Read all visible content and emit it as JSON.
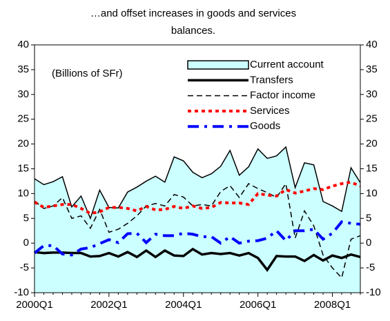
{
  "chart_data": {
    "type": "line",
    "title": [
      "…and offset increases in goods and services",
      "balances."
    ],
    "annotation": "(Billions of SFr)",
    "categories": [
      "2000Q1",
      null,
      null,
      null,
      null,
      null,
      null,
      null,
      "2002Q1",
      null,
      null,
      null,
      null,
      null,
      null,
      null,
      "2004Q1",
      null,
      null,
      null,
      null,
      null,
      null,
      null,
      "2006Q1",
      null,
      null,
      null,
      null,
      null,
      null,
      null,
      "2008Q1",
      null,
      null,
      null
    ],
    "series": [
      {
        "name": "Current account",
        "kind": "area",
        "color": "#ccffff",
        "values": [
          13,
          11.8,
          12.4,
          13.4,
          7.3,
          9.5,
          5,
          10.7,
          7.2,
          7.1,
          10.3,
          11.3,
          12.5,
          13.5,
          12.3,
          17.4,
          16.6,
          14.3,
          13.2,
          14,
          15.5,
          18.7,
          13.7,
          15.4,
          19,
          17.1,
          17.6,
          19.4,
          11.2,
          16.2,
          15.8,
          8.4,
          7.5,
          6.4,
          15.2,
          12.2
        ]
      },
      {
        "name": "Transfers",
        "kind": "line",
        "color": "#000000",
        "width": 3.5,
        "dash": "none",
        "values": [
          -1.8,
          -2,
          -1.9,
          -1.9,
          -2,
          -2,
          -2.7,
          -2.6,
          -2,
          -2.7,
          -1.8,
          -2.8,
          -1.5,
          -2.8,
          -1.5,
          -2.5,
          -2.6,
          -1.2,
          -2.3,
          -2,
          -2.2,
          -2,
          -2.5,
          -2,
          -3,
          -5.4,
          -2.6,
          -2.7,
          -2.7,
          -3.6,
          -2.4,
          -3.5,
          -2.5,
          -3,
          -2.3,
          -2.8
        ]
      },
      {
        "name": "Factor income",
        "kind": "line",
        "color": "#000000",
        "width": 1.5,
        "dash": "8,5",
        "values": [
          8.5,
          7,
          7.5,
          9.2,
          5,
          5.5,
          3,
          6.8,
          2.2,
          2.8,
          4,
          5.5,
          7.5,
          8,
          7.5,
          9.8,
          9.3,
          7.5,
          7.8,
          7.5,
          10.4,
          11.6,
          9.2,
          12,
          11,
          10.2,
          9.2,
          12,
          1,
          6.5,
          3.5,
          -2.4,
          -5,
          -7,
          0.8,
          1.5
        ]
      },
      {
        "name": "Services",
        "kind": "line",
        "color": "#ff0000",
        "width": 4,
        "dash": "5,5",
        "values": [
          8.3,
          7.2,
          7.5,
          7.8,
          7.8,
          7,
          6,
          6.3,
          7.2,
          7.2,
          7,
          6.5,
          7.4,
          6.7,
          6.8,
          7.4,
          7,
          7.5,
          7,
          7.2,
          8.2,
          8.1,
          8.1,
          7.8,
          10,
          9.7,
          9.5,
          10.8,
          10.1,
          10.5,
          11,
          10.8,
          11.5,
          12,
          12.3,
          11.5
        ]
      },
      {
        "name": "Goods",
        "kind": "line",
        "color": "#0000ff",
        "width": 4,
        "dash": "16,8,4,8",
        "values": [
          -2,
          -0.5,
          -0.5,
          -2.2,
          -2.4,
          -1.2,
          -0.9,
          -0.1,
          0.7,
          0.1,
          1.9,
          2,
          0.1,
          1.8,
          1.5,
          1.5,
          2,
          1.8,
          1.3,
          1.3,
          0,
          1.3,
          0,
          0.4,
          0.5,
          1,
          2.5,
          0.5,
          2.5,
          2.5,
          2.8,
          0.8,
          2,
          4.3,
          4,
          3.8
        ]
      }
    ],
    "ylim": [
      -10,
      40
    ],
    "yticks": [
      -10,
      -5,
      0,
      5,
      10,
      15,
      20,
      25,
      30,
      35,
      40
    ],
    "y2lim": [
      -10,
      40
    ],
    "y2ticks": [
      -10,
      -5,
      0,
      5,
      10,
      15,
      20,
      25,
      30,
      35,
      40
    ],
    "legend": "upper right"
  }
}
